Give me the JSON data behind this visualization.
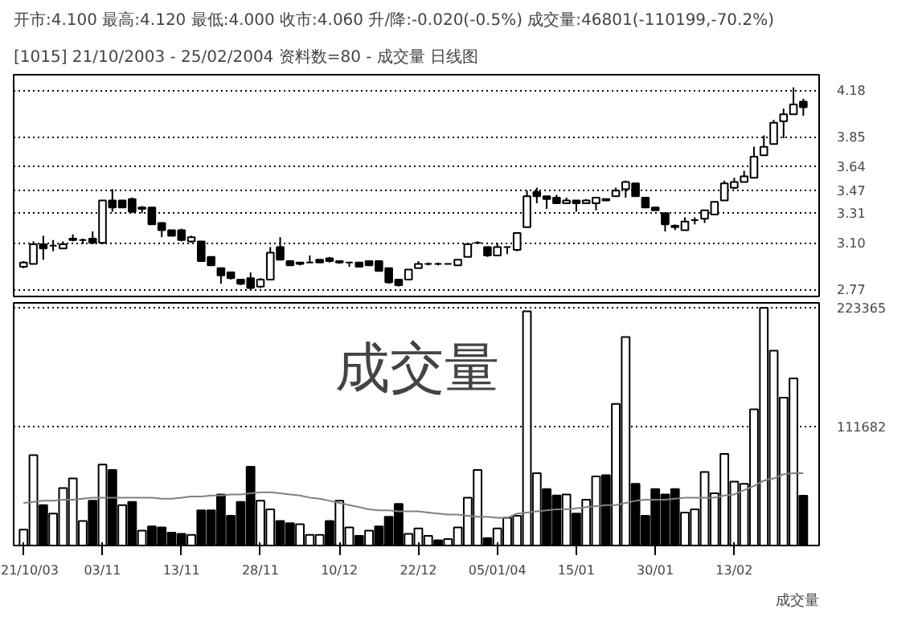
{
  "chart_data": [
    {
      "type": "candlestick",
      "title": "开市:4.100 最高:4.120 最低:4.000 收市:4.060 升/降:-0.020(-0.5%) 成交量:46801(-110199,-70.2%)",
      "subtitle": "[1015]  21/10/2003 - 25/02/2004  资料数=80  - 成交量    日线图",
      "tick_labels": "y",
      "ylim": [
        2.72,
        4.29
      ],
      "yticks": [
        2.77,
        {
          "value": 3.1,
          "label": "3.10"
        },
        3.31,
        3.47,
        3.64,
        3.85,
        4.18
      ],
      "grid": "y",
      "ohlc": [
        [
          2.93,
          2.97,
          2.92,
          2.96
        ],
        [
          2.95,
          3.11,
          2.95,
          3.09
        ],
        [
          3.09,
          3.15,
          2.98,
          3.06
        ],
        [
          3.08,
          3.12,
          3.04,
          3.08
        ],
        [
          3.06,
          3.11,
          3.06,
          3.09
        ],
        [
          3.12,
          3.16,
          3.11,
          3.13
        ],
        [
          3.12,
          3.13,
          3.09,
          3.12
        ],
        [
          3.13,
          3.18,
          3.09,
          3.1
        ],
        [
          3.1,
          3.4,
          3.09,
          3.4
        ],
        [
          3.4,
          3.48,
          3.32,
          3.35
        ],
        [
          3.4,
          3.4,
          3.35,
          3.35
        ],
        [
          3.41,
          3.42,
          3.31,
          3.32
        ],
        [
          3.35,
          3.36,
          3.31,
          3.34
        ],
        [
          3.35,
          3.35,
          3.23,
          3.23
        ],
        [
          3.24,
          3.24,
          3.14,
          3.19
        ],
        [
          3.19,
          3.19,
          3.15,
          3.15
        ],
        [
          3.19,
          3.2,
          3.11,
          3.12
        ],
        [
          3.11,
          3.15,
          3.1,
          3.14
        ],
        [
          3.11,
          3.11,
          2.97,
          2.97
        ],
        [
          3.0,
          3.0,
          2.94,
          2.94
        ],
        [
          2.92,
          2.92,
          2.81,
          2.87
        ],
        [
          2.89,
          2.89,
          2.84,
          2.85
        ],
        [
          2.84,
          2.84,
          2.8,
          2.81
        ],
        [
          2.85,
          2.89,
          2.77,
          2.78
        ],
        [
          2.79,
          2.85,
          2.78,
          2.84
        ],
        [
          2.84,
          3.07,
          2.84,
          3.03
        ],
        [
          3.07,
          3.14,
          2.98,
          2.98
        ],
        [
          2.97,
          2.97,
          2.94,
          2.94
        ],
        [
          2.95,
          2.96,
          2.94,
          2.96
        ],
        [
          2.96,
          3.01,
          2.96,
          2.96
        ],
        [
          2.98,
          2.98,
          2.96,
          2.96
        ],
        [
          2.99,
          3.0,
          2.96,
          2.97
        ],
        [
          2.97,
          2.97,
          2.95,
          2.96
        ],
        [
          2.96,
          2.96,
          2.93,
          2.96
        ],
        [
          2.96,
          2.96,
          2.93,
          2.93
        ],
        [
          2.97,
          2.97,
          2.94,
          2.94
        ],
        [
          2.97,
          2.97,
          2.9,
          2.9
        ],
        [
          2.92,
          2.92,
          2.81,
          2.82
        ],
        [
          2.84,
          2.84,
          2.79,
          2.8
        ],
        [
          2.84,
          2.91,
          2.84,
          2.91
        ],
        [
          2.92,
          2.97,
          2.92,
          2.95
        ],
        [
          2.95,
          2.96,
          2.94,
          2.95
        ],
        [
          2.95,
          2.96,
          2.94,
          2.95
        ],
        [
          2.95,
          2.95,
          2.95,
          2.95
        ],
        [
          2.94,
          2.98,
          2.94,
          2.98
        ],
        [
          3.0,
          3.09,
          3.0,
          3.09
        ],
        [
          3.1,
          3.11,
          3.09,
          3.1
        ],
        [
          3.07,
          3.07,
          3.0,
          3.01
        ],
        [
          3.01,
          3.1,
          3.01,
          3.07
        ],
        [
          3.07,
          3.07,
          3.02,
          3.07
        ],
        [
          3.05,
          3.17,
          3.04,
          3.17
        ],
        [
          3.21,
          3.47,
          3.21,
          3.43
        ],
        [
          3.46,
          3.49,
          3.38,
          3.43
        ],
        [
          3.43,
          3.43,
          3.34,
          3.41
        ],
        [
          3.42,
          3.44,
          3.38,
          3.38
        ],
        [
          3.38,
          3.42,
          3.38,
          3.4
        ],
        [
          3.4,
          3.4,
          3.32,
          3.38
        ],
        [
          3.38,
          3.41,
          3.38,
          3.4
        ],
        [
          3.38,
          3.42,
          3.33,
          3.42
        ],
        [
          3.41,
          3.41,
          3.4,
          3.4
        ],
        [
          3.43,
          3.49,
          3.43,
          3.47
        ],
        [
          3.48,
          3.54,
          3.42,
          3.53
        ],
        [
          3.52,
          3.52,
          3.43,
          3.43
        ],
        [
          3.42,
          3.42,
          3.35,
          3.35
        ],
        [
          3.35,
          3.35,
          3.33,
          3.33
        ],
        [
          3.31,
          3.31,
          3.18,
          3.23
        ],
        [
          3.22,
          3.23,
          3.19,
          3.21
        ],
        [
          3.19,
          3.28,
          3.19,
          3.25
        ],
        [
          3.26,
          3.28,
          3.23,
          3.26
        ],
        [
          3.27,
          3.33,
          3.24,
          3.33
        ],
        [
          3.3,
          3.39,
          3.3,
          3.39
        ],
        [
          3.4,
          3.54,
          3.4,
          3.52
        ],
        [
          3.49,
          3.56,
          3.48,
          3.53
        ],
        [
          3.53,
          3.61,
          3.53,
          3.57
        ],
        [
          3.56,
          3.78,
          3.56,
          3.71
        ],
        [
          3.72,
          3.86,
          3.72,
          3.78
        ],
        [
          3.8,
          3.97,
          3.8,
          3.95
        ],
        [
          3.96,
          4.05,
          3.84,
          4.01
        ],
        [
          4.01,
          4.2,
          4.01,
          4.08
        ],
        [
          4.1,
          4.12,
          4.0,
          4.06
        ]
      ]
    },
    {
      "type": "bar",
      "categories": [
        "21/10/03",
        null,
        null,
        null,
        null,
        null,
        null,
        null,
        "03/11",
        null,
        null,
        null,
        null,
        null,
        null,
        null,
        "13/11",
        null,
        null,
        null,
        null,
        null,
        null,
        null,
        "28/11",
        null,
        null,
        null,
        null,
        null,
        null,
        null,
        "10/12",
        null,
        null,
        null,
        null,
        null,
        null,
        null,
        "22/12",
        null,
        null,
        null,
        null,
        null,
        null,
        null,
        "05/01/04",
        null,
        null,
        null,
        null,
        null,
        null,
        null,
        "15/01",
        null,
        null,
        null,
        null,
        null,
        null,
        null,
        "30/01",
        null,
        null,
        null,
        null,
        null,
        null,
        null,
        "13/02",
        null,
        null,
        null,
        null,
        null,
        null,
        null
      ],
      "ylim": [
        0,
        228000
      ],
      "yticks": [
        111682,
        223365
      ],
      "grid": "y",
      "annotations": [
        "成交量",
        "成交量"
      ],
      "series": [
        {
          "type": "bar",
          "colors": [
            "#ffffff",
            "#ffffff",
            "#000000",
            "#ffffff",
            "#ffffff",
            "#ffffff",
            "#ffffff",
            "#000000",
            "#ffffff",
            "#000000",
            "#ffffff",
            "#000000",
            "#ffffff",
            "#000000",
            "#000000",
            "#000000",
            "#000000",
            "#ffffff",
            "#000000",
            "#000000",
            "#000000",
            "#000000",
            "#000000",
            "#000000",
            "#ffffff",
            "#ffffff",
            "#000000",
            "#000000",
            "#ffffff",
            "#ffffff",
            "#ffffff",
            "#000000",
            "#ffffff",
            "#ffffff",
            "#000000",
            "#ffffff",
            "#000000",
            "#000000",
            "#000000",
            "#ffffff",
            "#ffffff",
            "#ffffff",
            "#000000",
            "#ffffff",
            "#ffffff",
            "#ffffff",
            "#ffffff",
            "#000000",
            "#ffffff",
            "#ffffff",
            "#ffffff",
            "#ffffff",
            "#ffffff",
            "#000000",
            "#000000",
            "#ffffff",
            "#000000",
            "#ffffff",
            "#ffffff",
            "#000000",
            "#ffffff",
            "#ffffff",
            "#000000",
            "#000000",
            "#000000",
            "#000000",
            "#000000",
            "#ffffff",
            "#ffffff",
            "#ffffff",
            "#ffffff",
            "#ffffff",
            "#ffffff",
            "#ffffff",
            "#ffffff",
            "#ffffff",
            "#ffffff",
            "#ffffff",
            "#ffffff",
            "#000000"
          ],
          "values": [
            15000,
            85000,
            38000,
            30000,
            54000,
            63000,
            23000,
            42000,
            76000,
            71000,
            38000,
            41000,
            14000,
            18000,
            17000,
            12000,
            11000,
            10000,
            33000,
            33000,
            48000,
            28000,
            41000,
            74000,
            42000,
            34000,
            23000,
            21000,
            20000,
            10000,
            10000,
            23000,
            42000,
            17000,
            9000,
            14000,
            18000,
            27000,
            39000,
            11000,
            16000,
            9000,
            5000,
            6000,
            17000,
            45000,
            71000,
            7000,
            16000,
            26000,
            28000,
            220000,
            68000,
            53000,
            47000,
            48000,
            30000,
            43000,
            65000,
            66000,
            133000,
            196000,
            58000,
            28000,
            53000,
            48000,
            53000,
            31000,
            34000,
            69000,
            49000,
            86000,
            60000,
            58000,
            128000,
            223365,
            183000,
            139000,
            157000,
            46801
          ]
        },
        {
          "type": "line",
          "color": "#808080",
          "values": [
            40000,
            41000,
            42000,
            42000,
            43000,
            43000,
            44000,
            45000,
            45000,
            45000,
            45000,
            45000,
            45000,
            45000,
            44000,
            44000,
            45000,
            46000,
            46000,
            47000,
            47000,
            48000,
            48000,
            49000,
            50000,
            50000,
            49000,
            48000,
            47000,
            45000,
            44000,
            42000,
            40000,
            38000,
            36000,
            34000,
            33000,
            33000,
            32000,
            32000,
            32000,
            31000,
            30000,
            29000,
            29000,
            28000,
            27000,
            27000,
            26000,
            26000,
            30000,
            31000,
            32000,
            33000,
            34000,
            34000,
            35000,
            36000,
            37000,
            38000,
            38000,
            40000,
            42000,
            43000,
            43000,
            43000,
            44000,
            45000,
            45000,
            45000,
            45000,
            47000,
            48000,
            52000,
            56000,
            61000,
            63000,
            67000,
            68000,
            68000
          ]
        }
      ]
    }
  ]
}
